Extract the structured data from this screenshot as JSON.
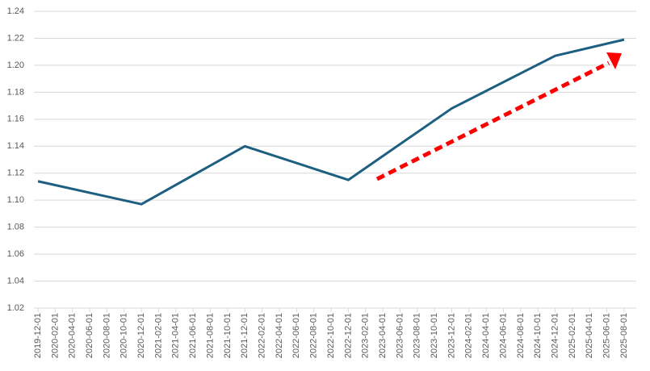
{
  "chart_data": {
    "type": "line",
    "categories": [
      "2019-12-01",
      "2020-02-01",
      "2020-04-01",
      "2020-06-01",
      "2020-08-01",
      "2020-10-01",
      "2020-12-01",
      "2021-02-01",
      "2021-04-01",
      "2021-06-01",
      "2021-08-01",
      "2021-10-01",
      "2021-12-01",
      "2022-02-01",
      "2022-04-01",
      "2022-06-01",
      "2022-08-01",
      "2022-10-01",
      "2022-12-01",
      "2023-02-01",
      "2023-04-01",
      "2023-06-01",
      "2023-08-01",
      "2023-10-01",
      "2023-12-01",
      "2024-02-01",
      "2024-04-01",
      "2024-06-01",
      "2024-08-01",
      "2024-10-01",
      "2024-12-01",
      "2025-02-01",
      "2025-04-01",
      "2025-06-01",
      "2025-08-01"
    ],
    "series": [
      {
        "color": "#1d5f80",
        "x": [
          "2019-12-01",
          "2020-12-01",
          "2021-12-01",
          "2022-12-01",
          "2023-12-01",
          "2024-12-01",
          "2025-08-01"
        ],
        "values": [
          1.114,
          1.097,
          1.14,
          1.115,
          1.168,
          1.207,
          1.219
        ]
      }
    ],
    "ylim": [
      1.02,
      1.24
    ],
    "yticks": [
      1.02,
      1.04,
      1.06,
      1.08,
      {
        "value": 1.1,
        "label": "1.10"
      },
      1.12,
      1.14,
      1.16,
      1.18,
      {
        "value": 1.2,
        "label": "1.20"
      },
      1.22,
      1.24
    ],
    "grid": true
  }
}
